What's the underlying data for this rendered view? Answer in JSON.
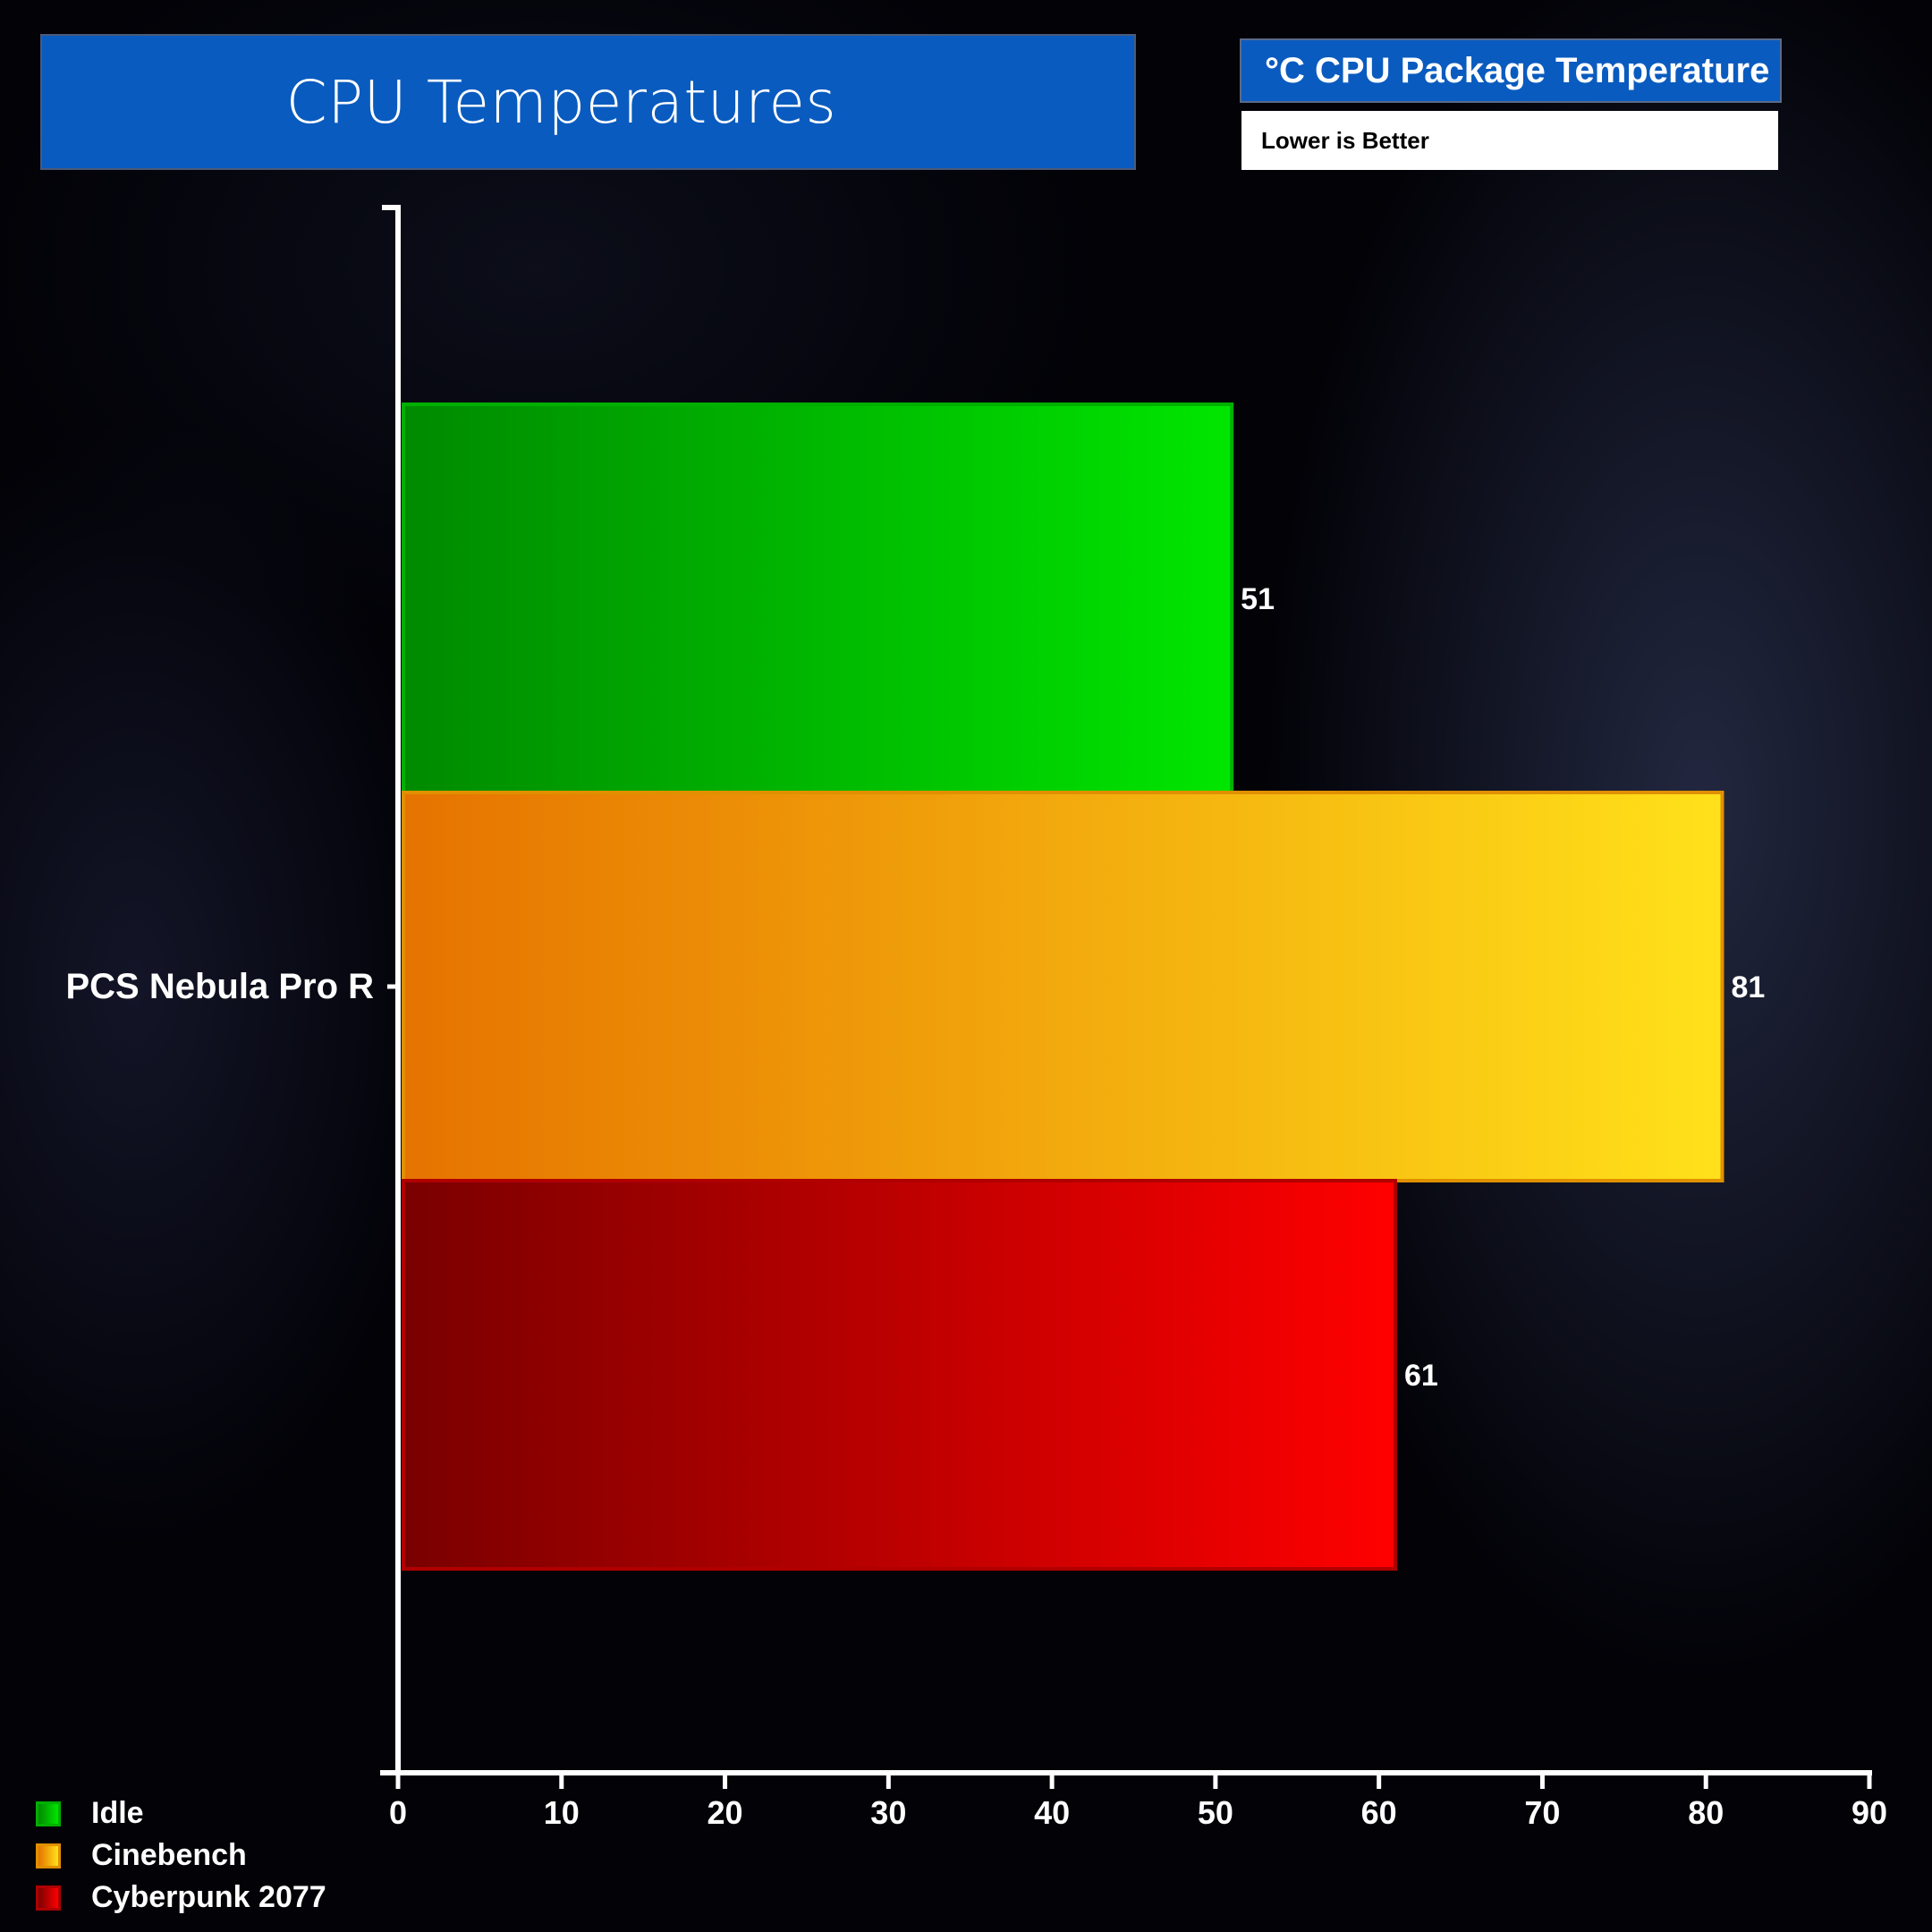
{
  "header": {
    "title": "CPU Temperatures",
    "metric": "°C CPU Package Temperature",
    "note": "Lower is Better"
  },
  "chart_data": {
    "type": "bar",
    "orientation": "horizontal",
    "categories": [
      "PCS Nebula Pro R"
    ],
    "series": [
      {
        "name": "Idle",
        "values": [
          51
        ],
        "color_start": "#008a00",
        "color_end": "#00e600",
        "border": "#00b000"
      },
      {
        "name": "Cinebench",
        "values": [
          81
        ],
        "color_start": "#e67300",
        "color_end": "#ffe11a",
        "border": "#e09000"
      },
      {
        "name": "Cyberpunk 2077",
        "values": [
          61
        ],
        "color_start": "#7a0000",
        "color_end": "#ff0000",
        "border": "#b00000"
      }
    ],
    "xlim": [
      0,
      90
    ],
    "xticks": [
      0,
      10,
      20,
      30,
      40,
      50,
      60,
      70,
      80,
      90
    ],
    "data_labels": [
      "51",
      "81",
      "61"
    ],
    "legend_position": "bottom-left",
    "grid": false
  }
}
